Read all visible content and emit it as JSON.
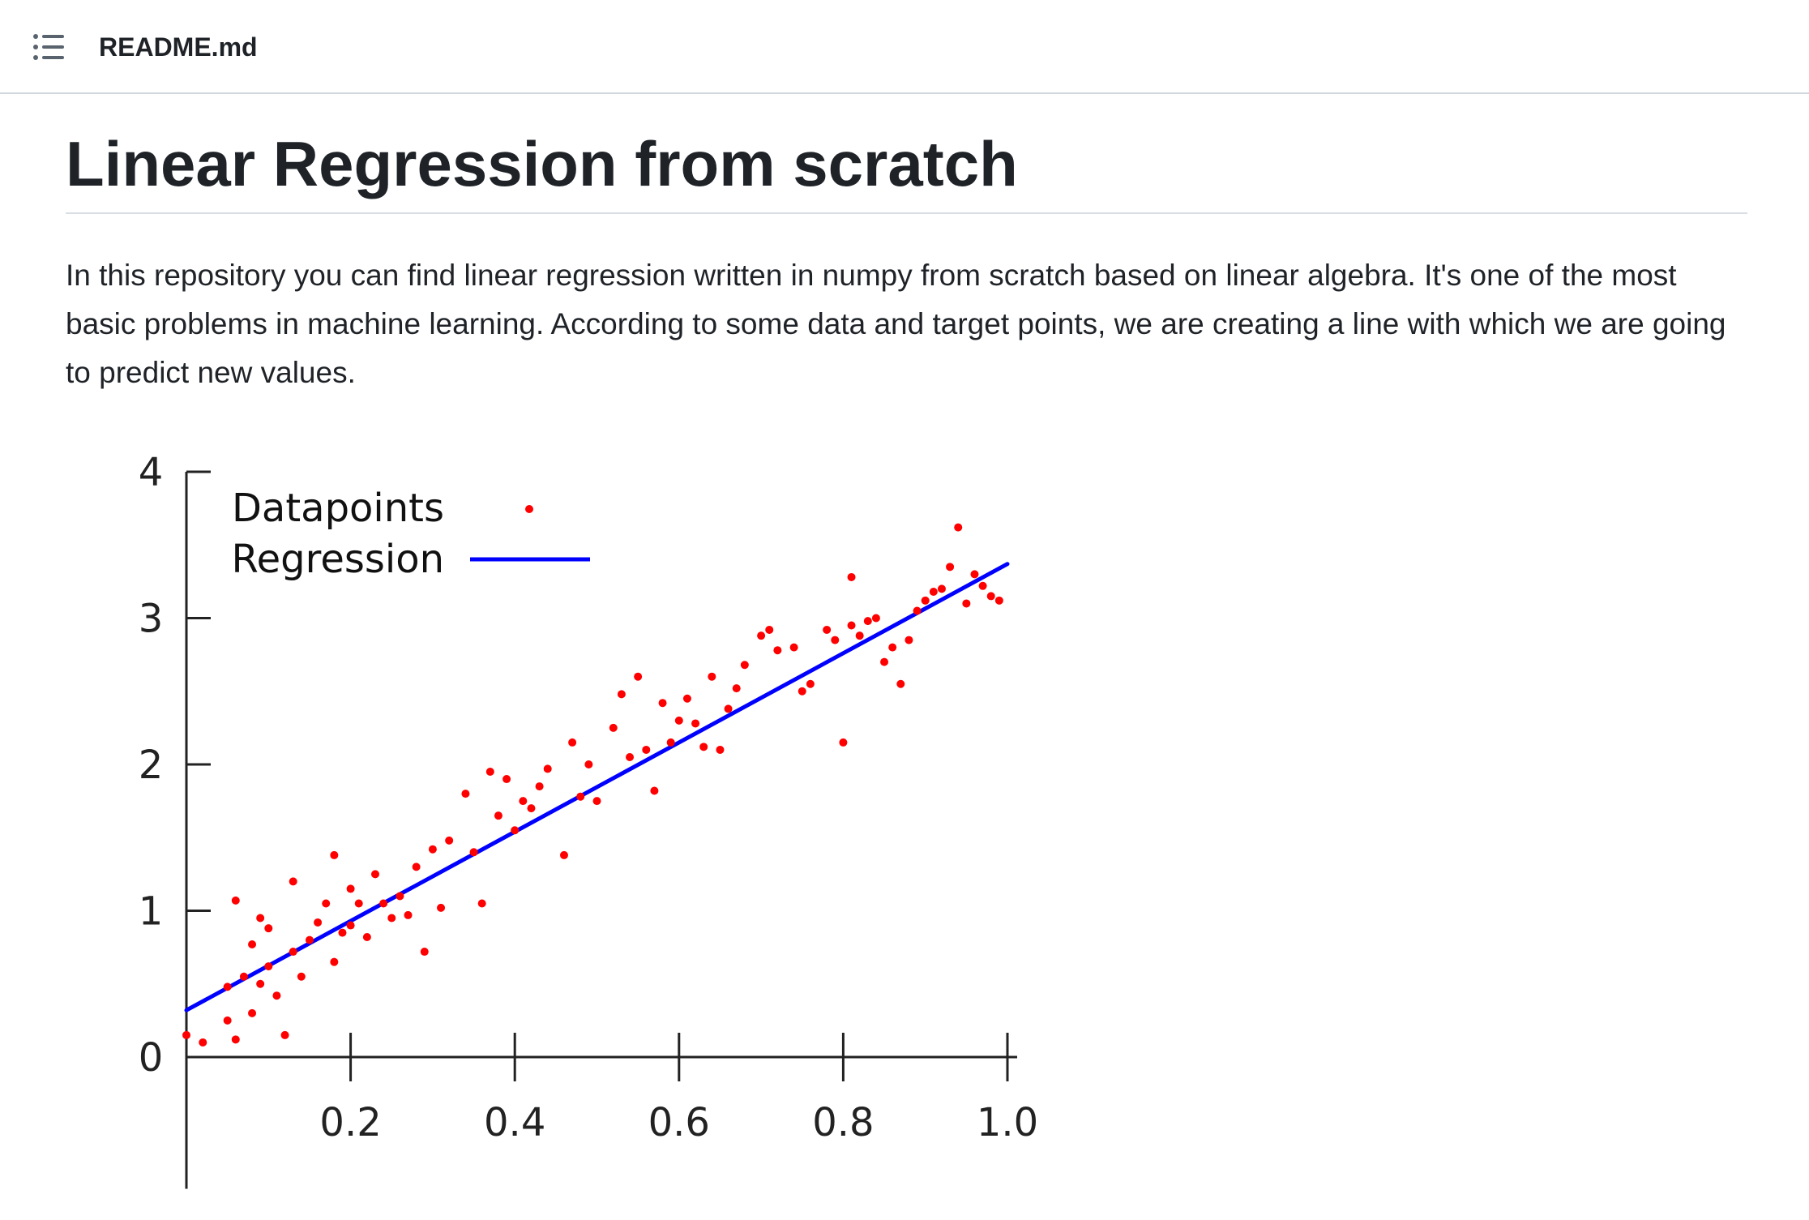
{
  "header": {
    "toc_icon": "list-unordered-icon",
    "file_name": "README.md"
  },
  "article": {
    "title": "Linear Regression from scratch",
    "intro": "In this repository you can find linear regression written in numpy from scratch based on linear algebra. It's one of the most basic problems in machine learning. According to some data and target points, we are creating a line with which we are going to predict new values."
  },
  "chart_data": {
    "type": "scatter",
    "xticks": [
      "0.2",
      "0.4",
      "0.6",
      "0.8",
      "1.0"
    ],
    "yticks": [
      "0",
      "1",
      "2",
      "3",
      "4"
    ],
    "xlim": [
      0,
      1.0
    ],
    "ylim": [
      -0.9,
      4
    ],
    "grid": false,
    "legend": {
      "placement": "top-left"
    },
    "colors": {
      "points": "#ff0000",
      "line": "#0000ff"
    },
    "series": [
      {
        "name": "Datapoints",
        "type": "scatter",
        "x": [
          0.0,
          0.02,
          0.05,
          0.05,
          0.06,
          0.06,
          0.07,
          0.08,
          0.08,
          0.09,
          0.09,
          0.1,
          0.1,
          0.11,
          0.12,
          0.13,
          0.13,
          0.14,
          0.15,
          0.16,
          0.17,
          0.18,
          0.18,
          0.19,
          0.2,
          0.2,
          0.21,
          0.22,
          0.23,
          0.24,
          0.25,
          0.26,
          0.27,
          0.28,
          0.29,
          0.3,
          0.31,
          0.32,
          0.34,
          0.35,
          0.36,
          0.37,
          0.38,
          0.39,
          0.4,
          0.41,
          0.42,
          0.43,
          0.44,
          0.46,
          0.47,
          0.48,
          0.49,
          0.5,
          0.52,
          0.53,
          0.54,
          0.55,
          0.56,
          0.57,
          0.58,
          0.59,
          0.6,
          0.61,
          0.62,
          0.63,
          0.64,
          0.65,
          0.66,
          0.67,
          0.68,
          0.7,
          0.71,
          0.72,
          0.74,
          0.75,
          0.76,
          0.78,
          0.79,
          0.8,
          0.81,
          0.81,
          0.82,
          0.83,
          0.84,
          0.85,
          0.86,
          0.87,
          0.88,
          0.89,
          0.9,
          0.91,
          0.92,
          0.93,
          0.94,
          0.95,
          0.96,
          0.97,
          0.98,
          0.99
        ],
        "y": [
          0.15,
          0.1,
          0.25,
          0.48,
          0.12,
          1.07,
          0.55,
          0.3,
          0.77,
          0.5,
          0.95,
          0.88,
          0.62,
          0.42,
          0.15,
          0.72,
          1.2,
          0.55,
          0.8,
          0.92,
          1.05,
          0.65,
          1.38,
          0.85,
          1.15,
          0.9,
          1.05,
          0.82,
          1.25,
          1.05,
          0.95,
          1.1,
          0.97,
          1.3,
          0.72,
          1.42,
          1.02,
          1.48,
          1.8,
          1.4,
          1.05,
          1.95,
          1.65,
          1.9,
          1.55,
          1.75,
          1.7,
          1.85,
          1.97,
          1.38,
          2.15,
          1.78,
          2.0,
          1.75,
          2.25,
          2.48,
          2.05,
          2.6,
          2.1,
          1.82,
          2.42,
          2.15,
          2.3,
          2.45,
          2.28,
          2.12,
          2.6,
          2.1,
          2.38,
          2.52,
          2.68,
          2.88,
          2.92,
          2.78,
          2.8,
          2.5,
          2.55,
          2.92,
          2.85,
          2.15,
          3.28,
          2.95,
          2.88,
          2.98,
          3.0,
          2.7,
          2.8,
          2.55,
          2.85,
          3.05,
          3.12,
          3.18,
          3.2,
          3.35,
          3.62,
          3.1,
          3.3,
          3.22,
          3.15,
          3.12
        ]
      },
      {
        "name": "Regression",
        "type": "line",
        "x": [
          0.0,
          1.0
        ],
        "y": [
          0.32,
          3.37
        ]
      }
    ]
  }
}
